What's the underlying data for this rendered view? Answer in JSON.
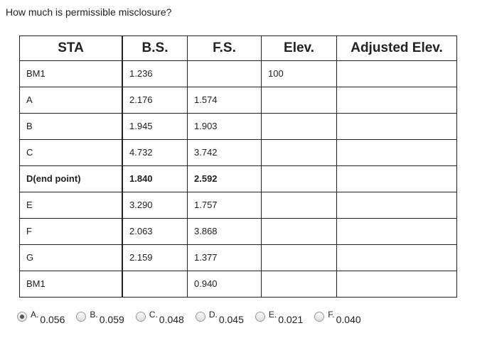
{
  "question": "How much is permissible misclosure?",
  "table": {
    "headers": [
      "STA",
      "B.S.",
      "F.S.",
      "Elev.",
      "Adjusted Elev."
    ],
    "rows": [
      [
        "BM1",
        "1.236",
        "",
        "100",
        ""
      ],
      [
        "A",
        "2.176",
        "1.574",
        "",
        ""
      ],
      [
        "B",
        "1.945",
        "1.903",
        "",
        ""
      ],
      [
        "C",
        "4.732",
        "3.742",
        "",
        ""
      ],
      [
        "D(end point)",
        "1.840",
        "2.592",
        "",
        ""
      ],
      [
        "E",
        "3.290",
        "1.757",
        "",
        ""
      ],
      [
        "F",
        "2.063",
        "3.868",
        "",
        ""
      ],
      [
        "G",
        "2.159",
        "1.377",
        "",
        ""
      ],
      [
        "BM1",
        "",
        "0.940",
        "",
        ""
      ]
    ]
  },
  "options": [
    {
      "letter": "A.",
      "value": "0.056",
      "selected": true
    },
    {
      "letter": "B.",
      "value": "0.059",
      "selected": false
    },
    {
      "letter": "C.",
      "value": "0.048",
      "selected": false
    },
    {
      "letter": "D.",
      "value": "0.045",
      "selected": false
    },
    {
      "letter": "E.",
      "value": "0.021",
      "selected": false
    },
    {
      "letter": "F.",
      "value": "0.040",
      "selected": false
    }
  ]
}
